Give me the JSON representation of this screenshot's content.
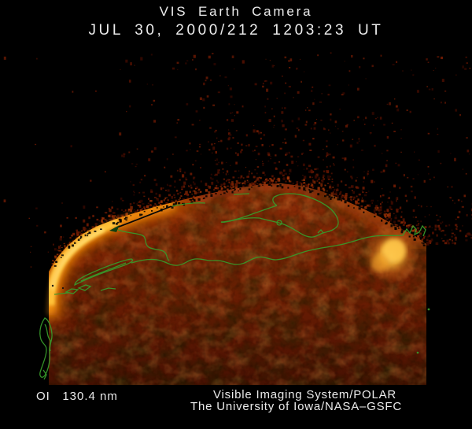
{
  "header": {
    "title_line1": "VIS Earth Camera",
    "title_line2": "JUL 30, 2000/212 1203:23 UT"
  },
  "footer": {
    "wavelength_label": "OI   130.4 nm",
    "credit_line1": "Visible Imaging System/POLAR",
    "credit_line2": "The University of Iowa/NASA–GSFC"
  },
  "colors": {
    "background": "#000000",
    "text": "#ececec",
    "coastline_overlay": "#38992b",
    "aurora_bright": "#ffd24e",
    "limb_glow": "#f08c10",
    "disc_base": "#7c2505",
    "noise_speckle": "#4e0f01"
  }
}
